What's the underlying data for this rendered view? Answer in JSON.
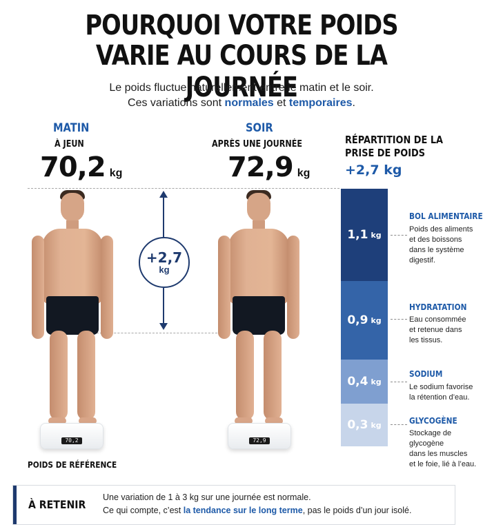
{
  "header": {
    "title_line1": "POURQUOI VOTRE POIDS",
    "title_line2": "VARIE AU COURS DE LA JOURNÉE",
    "subtitle_line1": "Le poids fluctue naturellement entre le matin et le soir.",
    "subtitle_line2_a": "Ces variations sont ",
    "subtitle_line2_b": "normales",
    "subtitle_line2_c": " et ",
    "subtitle_line2_d": "temporaires",
    "subtitle_line2_e": "."
  },
  "morning": {
    "period": "MATIN",
    "condition": "À JEUN",
    "weight": "70,2",
    "unit": "kg",
    "scale_display": "70,2",
    "reference_label": "POIDS DE RÉFÉRENCE"
  },
  "evening": {
    "period": "SOIR",
    "condition": "APRÈS UNE JOURNÉE",
    "weight": "72,9",
    "unit": "kg",
    "scale_display": "72,9"
  },
  "difference": {
    "value": "+2,7",
    "unit": "kg"
  },
  "breakdown": {
    "title_line1": "RÉPARTITION DE LA",
    "title_line2": "PRISE DE POIDS",
    "total": "+2,7 kg",
    "segments": [
      {
        "value": "1,1",
        "unit": "kg",
        "kg": 1.1,
        "color": "#1e3f7a",
        "name": "BOL ALIMENTAIRE",
        "desc_lines": [
          "Poids des aliments",
          "et des boissons",
          "dans le système",
          "digestif."
        ]
      },
      {
        "value": "0,9",
        "unit": "kg",
        "kg": 0.9,
        "color": "#3464a8",
        "name": "HYDRATATION",
        "desc_lines": [
          "Eau consommée",
          "et retenue dans",
          "les tissus."
        ]
      },
      {
        "value": "0,4",
        "unit": "kg",
        "kg": 0.4,
        "color": "#7f9fd0",
        "name": "SODIUM",
        "desc_lines": [
          "Le sodium favorise",
          "la rétention d’eau."
        ]
      },
      {
        "value": "0,3",
        "unit": "kg",
        "kg": 0.3,
        "color": "#c7d5ea",
        "name": "GLYCOGÈNE",
        "desc_lines": [
          "Stockage de glycogène",
          "dans les muscles",
          "et le foie, lié à l’eau."
        ]
      }
    ]
  },
  "retain": {
    "title": "À RETENIR",
    "line1": "Une variation de 1 à 3 kg sur une journée est normale.",
    "line2_a": "Ce qui compte, c’est ",
    "line2_b": "la tendance sur le long terme",
    "line2_c": ", pas le poids d’un jour isolé."
  },
  "colors": {
    "accent": "#1e5aa8",
    "navy": "#1e3a6e"
  }
}
